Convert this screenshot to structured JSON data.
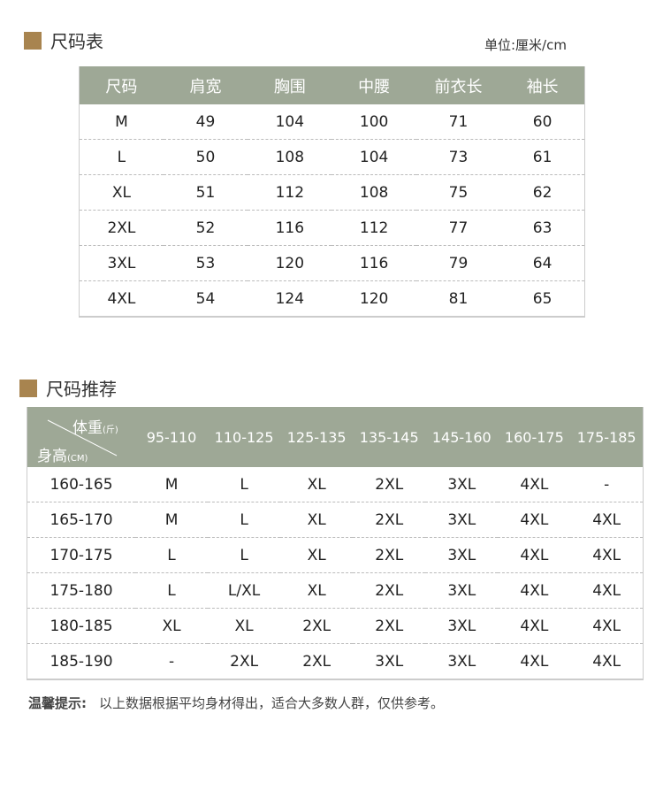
{
  "size_table": {
    "title": "尺码表",
    "unit": "单位:厘米/cm",
    "headers": [
      "尺码",
      "肩宽",
      "胸围",
      "中腰",
      "前衣长",
      "袖长"
    ],
    "rows": [
      [
        "M",
        "49",
        "104",
        "100",
        "71",
        "60"
      ],
      [
        "L",
        "50",
        "108",
        "104",
        "73",
        "61"
      ],
      [
        "XL",
        "51",
        "112",
        "108",
        "75",
        "62"
      ],
      [
        "2XL",
        "52",
        "116",
        "112",
        "77",
        "63"
      ],
      [
        "3XL",
        "53",
        "120",
        "116",
        "79",
        "64"
      ],
      [
        "4XL",
        "54",
        "124",
        "120",
        "81",
        "65"
      ]
    ]
  },
  "recommend": {
    "title": "尺码推荐",
    "weight_label": "体重",
    "weight_unit": "(斤)",
    "height_label": "身高",
    "height_unit": "(CM)",
    "weights": [
      "95-110",
      "110-125",
      "125-135",
      "135-145",
      "145-160",
      "160-175",
      "175-185"
    ],
    "rows": [
      [
        "160-165",
        "M",
        "L",
        "XL",
        "2XL",
        "3XL",
        "4XL",
        "-"
      ],
      [
        "165-170",
        "M",
        "L",
        "XL",
        "2XL",
        "3XL",
        "4XL",
        "4XL"
      ],
      [
        "170-175",
        "L",
        "L",
        "XL",
        "2XL",
        "3XL",
        "4XL",
        "4XL"
      ],
      [
        "175-180",
        "L",
        "L/XL",
        "XL",
        "2XL",
        "3XL",
        "4XL",
        "4XL"
      ],
      [
        "180-185",
        "XL",
        "XL",
        "2XL",
        "2XL",
        "3XL",
        "4XL",
        "4XL"
      ],
      [
        "185-190",
        "-",
        "2XL",
        "2XL",
        "3XL",
        "3XL",
        "4XL",
        "4XL"
      ]
    ]
  },
  "tip": {
    "label": "温馨提示:",
    "text": "以上数据根据平均身材得出，适合大多数人群，仅供参考。"
  },
  "colors": {
    "header": "#9ea896",
    "accent": "#a8844f"
  }
}
